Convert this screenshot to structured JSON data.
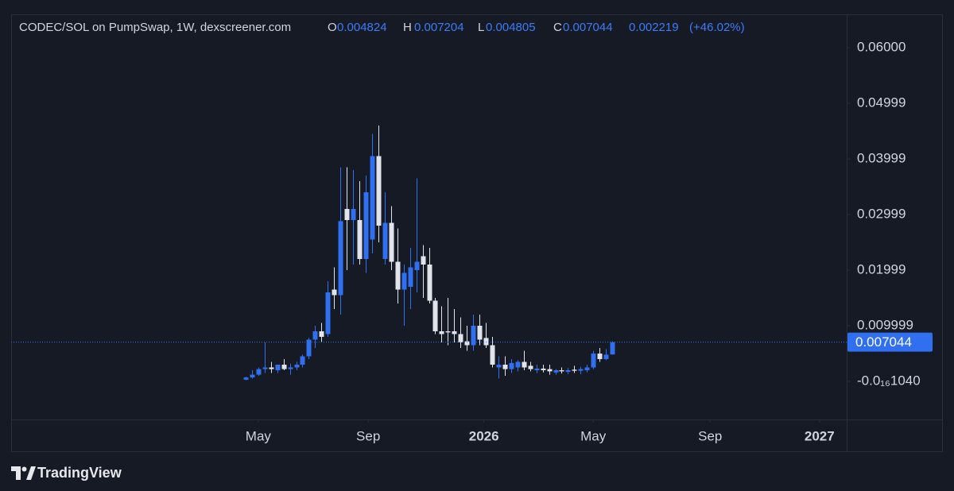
{
  "chart_data": {
    "type": "candlestick",
    "title": "CODEC/SOL on PumpSwap, 1W, dexscreener.com",
    "legend_labels": [
      "O",
      "H",
      "L",
      "C"
    ],
    "change": 0.002219,
    "change_pct": {
      "value": 46.02,
      "label": "(+46.02%)"
    },
    "branding": "TradingView",
    "up_color": "#2f6ff0",
    "down_color": "#e1e4ea",
    "open": [
      0.0003,
      0.0007,
      0.0012,
      0.0022,
      0.0025,
      0.002,
      0.003,
      0.0022,
      0.0025,
      0.003,
      0.0045,
      0.0075,
      0.009,
      0.0085,
      0.0165,
      0.0155,
      0.031,
      0.029,
      0.029,
      0.022,
      0.0255,
      0.0405,
      0.022,
      0.0285,
      0.0215,
      0.0165,
      0.017,
      0.02,
      0.0225,
      0.021,
      0.0145,
      0.009,
      0.009,
      0.009,
      0.0085,
      0.0072,
      0.0065,
      0.01,
      0.0078,
      0.0065,
      0.0025,
      0.003,
      0.0022,
      0.0025,
      0.0035,
      0.0028,
      0.002,
      0.0023,
      0.0022,
      0.0016,
      0.002,
      0.0017,
      0.0021,
      0.0019,
      0.002,
      0.0025,
      0.005,
      0.004,
      0.004824
    ],
    "high": [
      0.0008,
      0.002,
      0.0025,
      0.007,
      0.0035,
      0.003,
      0.004,
      0.0032,
      0.0035,
      0.0048,
      0.0078,
      0.01,
      0.0105,
      0.018,
      0.0205,
      0.0385,
      0.0385,
      0.038,
      0.036,
      0.037,
      0.0445,
      0.046,
      0.034,
      0.0315,
      0.0275,
      0.021,
      0.024,
      0.0365,
      0.0245,
      0.024,
      0.015,
      0.0135,
      0.015,
      0.013,
      0.0115,
      0.01,
      0.012,
      0.012,
      0.0105,
      0.008,
      0.0045,
      0.0045,
      0.004,
      0.0038,
      0.0055,
      0.0035,
      0.003,
      0.003,
      0.003,
      0.0022,
      0.0025,
      0.0024,
      0.0028,
      0.0026,
      0.003,
      0.0055,
      0.006,
      0.0058,
      0.007204
    ],
    "low": [
      0.0002,
      0.0005,
      0.001,
      0.0015,
      0.0015,
      0.0015,
      0.002,
      0.0012,
      0.002,
      0.0025,
      0.004,
      0.006,
      0.007,
      0.008,
      0.013,
      0.012,
      0.02,
      0.021,
      0.021,
      0.0195,
      0.023,
      0.025,
      0.021,
      0.02,
      0.014,
      0.01,
      0.013,
      0.016,
      0.015,
      0.014,
      0.0085,
      0.007,
      0.0065,
      0.007,
      0.006,
      0.0055,
      0.0055,
      0.0065,
      0.006,
      0.0025,
      0.0005,
      0.001,
      0.0015,
      0.0018,
      0.002,
      0.0018,
      0.0015,
      0.0016,
      0.0012,
      0.0012,
      0.0014,
      0.0013,
      0.0015,
      0.0013,
      0.0016,
      0.0022,
      0.0035,
      0.0038,
      0.004805
    ],
    "close": [
      0.0007,
      0.0012,
      0.0022,
      0.0025,
      0.0022,
      0.003,
      0.0022,
      0.0025,
      0.003,
      0.0045,
      0.0075,
      0.009,
      0.008,
      0.016,
      0.0155,
      0.0288,
      0.029,
      0.031,
      0.022,
      0.034,
      0.0405,
      0.028,
      0.0285,
      0.0215,
      0.0165,
      0.0195,
      0.0205,
      0.0215,
      0.021,
      0.0145,
      0.009,
      0.0085,
      0.0088,
      0.0085,
      0.007,
      0.0065,
      0.01,
      0.0075,
      0.0065,
      0.003,
      0.003,
      0.0022,
      0.0033,
      0.0035,
      0.0025,
      0.0022,
      0.0023,
      0.002,
      0.0018,
      0.002,
      0.0018,
      0.002,
      0.0019,
      0.0022,
      0.0025,
      0.005,
      0.004,
      0.0048,
      0.007044
    ],
    "xlim": [
      -37.1,
      95.1
    ],
    "xticks": [
      {
        "value": 2,
        "label": "May"
      },
      {
        "value": 19.4,
        "label": "Sep"
      },
      {
        "value": 37.7,
        "label": "2026"
      },
      {
        "value": 55,
        "label": "May"
      },
      {
        "value": 73.5,
        "label": "Sep"
      },
      {
        "value": 90.8,
        "label": "2027"
      }
    ],
    "ylim": [
      -0.00686,
      0.066
    ],
    "yticks": [
      {
        "value": 0.06,
        "label": "0.06000"
      },
      {
        "value": 0.04999,
        "label": "0.04999"
      },
      {
        "value": 0.03999,
        "label": "0.03999"
      },
      {
        "value": 0.02999,
        "label": "0.02999"
      },
      {
        "value": 0.01999,
        "label": "0.01999"
      },
      {
        "value": 0.009999,
        "label": "0.009999"
      },
      {
        "value": -1.04e-17,
        "label": "-0.0₁₆1040"
      }
    ]
  }
}
